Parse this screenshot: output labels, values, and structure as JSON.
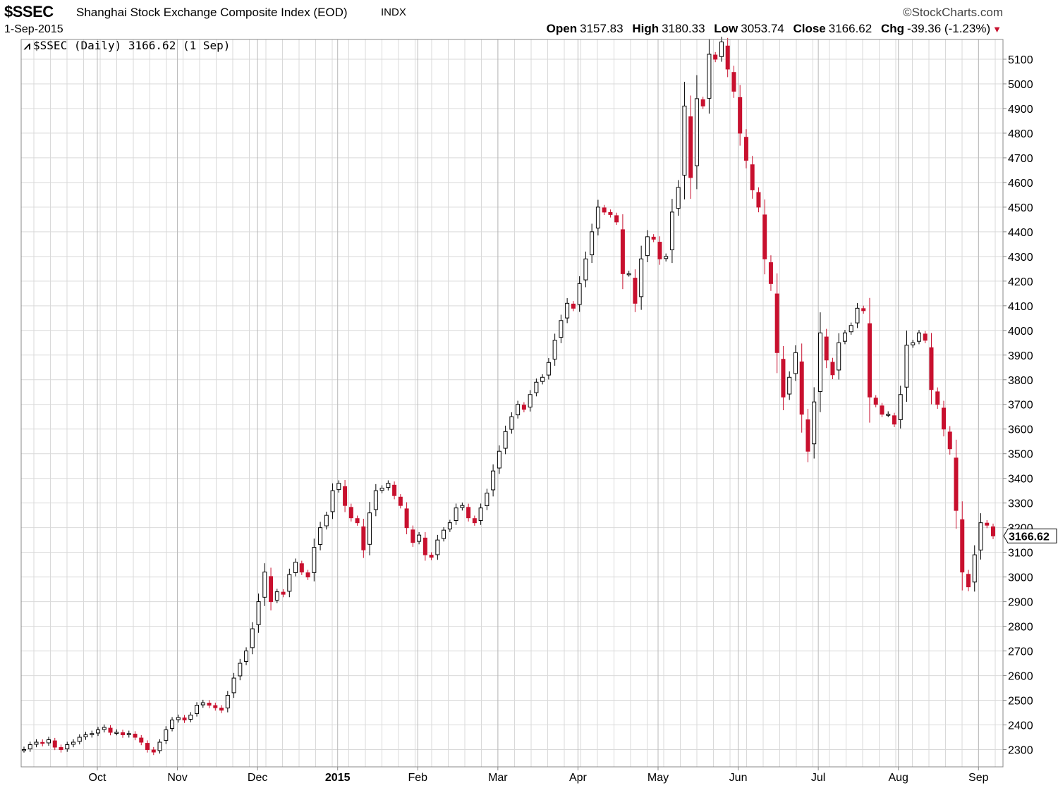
{
  "header": {
    "symbol": "$SSEC",
    "index_name": "Shanghai Stock Exchange Composite Index (EOD)",
    "exchange": "INDX",
    "date": "1-Sep-2015",
    "source": "©StockCharts.com",
    "quote": {
      "open_label": "Open",
      "open": "3157.83",
      "high_label": "High",
      "high": "3180.33",
      "low_label": "Low",
      "low": "3053.74",
      "close_label": "Close",
      "close": "3166.62",
      "chg_label": "Chg",
      "chg": "-39.36 (-1.23%)",
      "chg_arrow": "▼"
    },
    "legend": "$SSEC (Daily) 3166.62 (1 Sep)"
  },
  "colors": {
    "up": "#000000",
    "down": "#c8102e",
    "grid": "#d9d9d9",
    "axis": "#888888"
  },
  "chart_data": {
    "type": "candlestick",
    "y_axis_side": "right",
    "ylim": [
      2230,
      5180
    ],
    "yticks": [
      2300,
      2400,
      2500,
      2600,
      2700,
      2800,
      2900,
      3000,
      3100,
      3200,
      3300,
      3400,
      3500,
      3600,
      3700,
      3800,
      3900,
      4000,
      4100,
      4200,
      4300,
      4400,
      4500,
      4600,
      4700,
      4800,
      4900,
      5000,
      5100
    ],
    "last_value_label": "3166.62",
    "month_labels": [
      "Oct",
      "Nov",
      "Dec",
      "2015",
      "Feb",
      "Mar",
      "Apr",
      "May",
      "Jun",
      "Jul",
      "Aug",
      "Sep"
    ],
    "close_series_approx": [
      2300,
      2320,
      2330,
      2325,
      2340,
      2310,
      2300,
      2320,
      2330,
      2350,
      2360,
      2365,
      2380,
      2390,
      2370,
      2370,
      2360,
      2365,
      2350,
      2330,
      2300,
      2290,
      2330,
      2380,
      2420,
      2430,
      2420,
      2440,
      2480,
      2490,
      2480,
      2470,
      2460,
      2520,
      2590,
      2650,
      2700,
      2790,
      2900,
      3020,
      2900,
      2940,
      2930,
      3010,
      3060,
      3020,
      3000,
      3120,
      3200,
      3250,
      3350,
      3380,
      3290,
      3240,
      3220,
      3110,
      3260,
      3350,
      3360,
      3380,
      3330,
      3290,
      3200,
      3140,
      3170,
      3090,
      3080,
      3150,
      3190,
      3220,
      3280,
      3290,
      3240,
      3220,
      3280,
      3340,
      3430,
      3510,
      3590,
      3650,
      3700,
      3680,
      3740,
      3790,
      3810,
      3870,
      3960,
      4040,
      4110,
      4090,
      4190,
      4290,
      4400,
      4500,
      4480,
      4470,
      4440,
      4230,
      4230,
      4110,
      4290,
      4380,
      4370,
      4290,
      4300,
      4480,
      4580,
      4910,
      4620,
      4940,
      4910,
      5120,
      5100,
      5170,
      5060,
      4970,
      4800,
      4690,
      4570,
      4500,
      4290,
      4190,
      3910,
      3730,
      3810,
      3910,
      3660,
      3510,
      3710,
      3990,
      3880,
      3820,
      3950,
      3990,
      4020,
      4090,
      4080,
      3730,
      3700,
      3660,
      3660,
      3620,
      3740,
      3940,
      3950,
      3990,
      3960,
      3760,
      3700,
      3600,
      3520,
      3270,
      3020,
      2960,
      3090,
      3220,
      3210,
      3166.62
    ]
  }
}
